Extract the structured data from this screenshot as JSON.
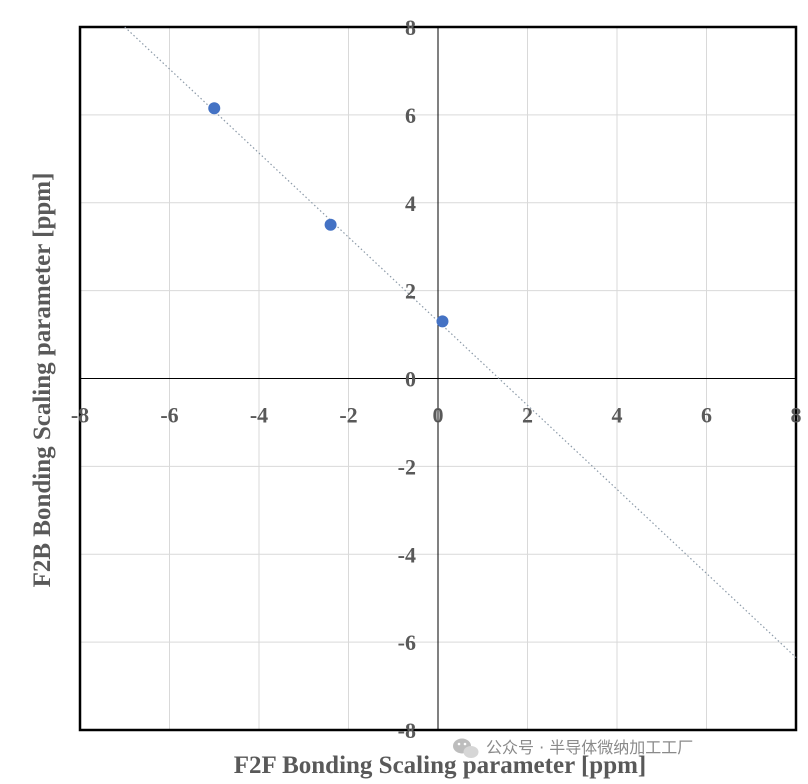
{
  "chart_data": {
    "type": "scatter",
    "xlabel": "F2F Bonding Scaling parameter [ppm]",
    "ylabel": "F2B Bonding Scaling parameter [ppm]",
    "xlim": [
      -8,
      8
    ],
    "ylim": [
      -8,
      8
    ],
    "x_ticks": [
      "-8",
      "-6",
      "-4",
      "-2",
      "0",
      "2",
      "4",
      "6",
      "8"
    ],
    "y_ticks": [
      "8",
      "6",
      "4",
      "2",
      "0",
      "-2",
      "-4",
      "-6",
      "-8"
    ],
    "grid": true,
    "series": [
      {
        "points": [
          {
            "x": -5.0,
            "y": 6.15
          },
          {
            "x": -2.4,
            "y": 3.5
          },
          {
            "x": 0.1,
            "y": 1.3
          }
        ],
        "color": "#4472c4"
      }
    ],
    "trendline": {
      "style": "dotted",
      "from": {
        "x": -7.0,
        "y": 8.0
      },
      "to": {
        "x": 8.0,
        "y": -6.35
      },
      "color": "#8c9aa8"
    }
  },
  "watermark": {
    "text": "公众号 · 半导体微纳加工工厂",
    "icon": "wechat-icon"
  }
}
